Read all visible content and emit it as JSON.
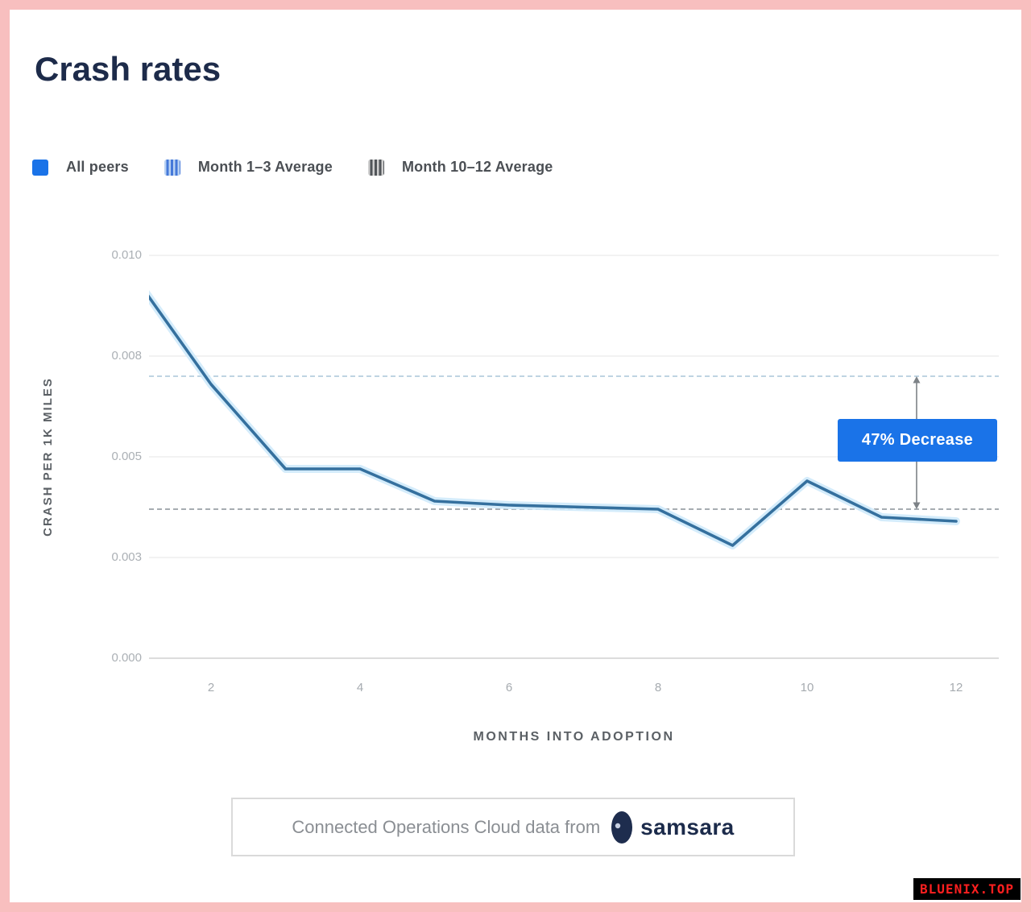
{
  "page": {
    "title": "Crash rates",
    "frame_color": "#f8bfbf"
  },
  "legend": {
    "items": [
      {
        "label": "All peers",
        "swatch": "solid-blue-square",
        "color": "#1a73e8"
      },
      {
        "label": "Month 1–3 Average",
        "swatch": "striped-blue-square",
        "color": "#4579d9"
      },
      {
        "label": "Month 10–12 Average",
        "swatch": "striped-gray-square",
        "color": "#515559"
      }
    ]
  },
  "chart_data": {
    "type": "line",
    "title": "Crash rates",
    "xlabel": "MONTHS INTO ADOPTION",
    "ylabel": "CRASH PER 1K MILES",
    "x": [
      1,
      2,
      3,
      4,
      5,
      6,
      7,
      8,
      9,
      10,
      11,
      12
    ],
    "series": [
      {
        "name": "All peers",
        "color": "#35709e",
        "glow_color": "#cfeafb",
        "values": [
          0.0094,
          0.0068,
          0.0047,
          0.0047,
          0.0039,
          0.0038,
          0.00375,
          0.0037,
          0.0028,
          0.0044,
          0.0035,
          0.0034
        ]
      }
    ],
    "reference_lines": [
      {
        "name": "Month 1–3 Average",
        "value": 0.007,
        "style": "dashed",
        "color": "#b6cede"
      },
      {
        "name": "Month 10–12 Average",
        "value": 0.0037,
        "style": "dashed",
        "color": "#9aa0a6"
      }
    ],
    "annotation": {
      "label": "47% Decrease",
      "color": "#1a73e8",
      "from_value": 0.007,
      "to_value": 0.0037,
      "x_month": 11.47
    },
    "ylim": [
      0,
      0.01
    ],
    "yticks": [
      0.01,
      0.0075,
      0.005,
      0.0025,
      0
    ],
    "ytick_labels": [
      "0.010",
      "0.008",
      "0.005",
      "0.003",
      "0.000"
    ],
    "xticks": [
      2,
      4,
      6,
      8,
      10,
      12
    ],
    "xtick_labels": [
      "2",
      "4",
      "6",
      "8",
      "10",
      "12"
    ],
    "grid": true,
    "legend_position": "top-left"
  },
  "footer": {
    "text": "Connected Operations Cloud data from",
    "brand": "samsara"
  },
  "watermark": {
    "text": "BLUENIX.TOP"
  }
}
